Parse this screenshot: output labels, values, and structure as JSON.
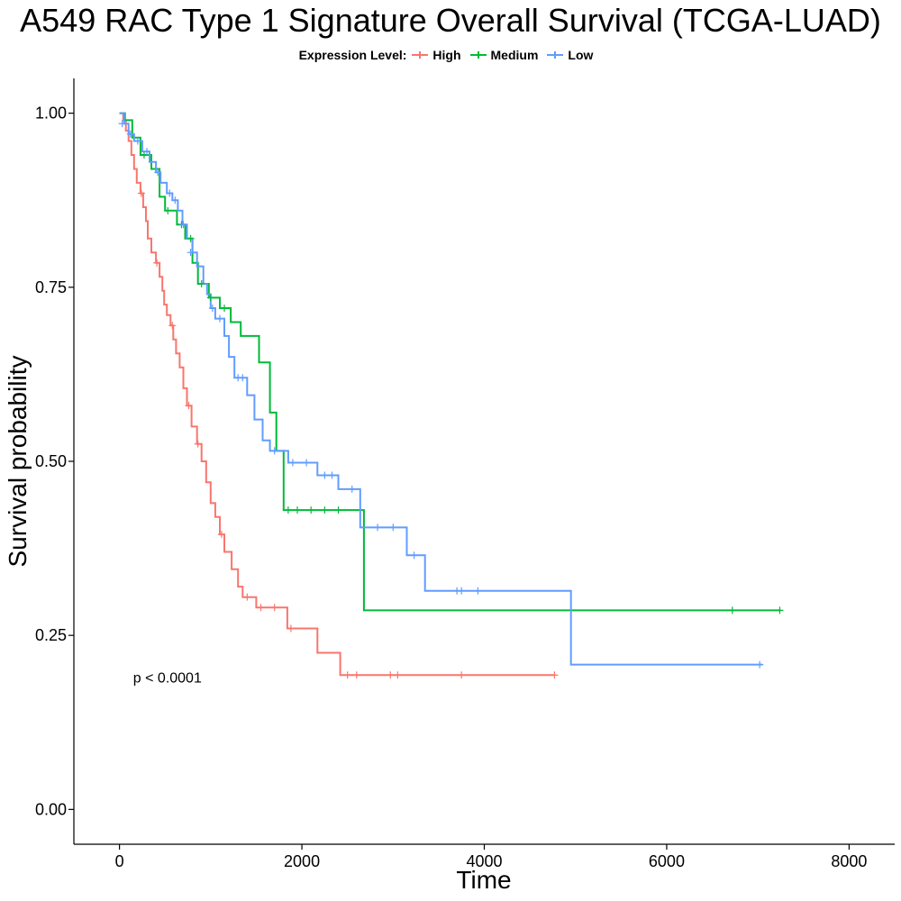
{
  "chart_data": {
    "type": "line",
    "title": "A549 RAC Type 1 Signature Overall Survival (TCGA-LUAD)",
    "xlabel": "Time",
    "ylabel": "Survival probability",
    "xlim": [
      -500,
      8500
    ],
    "ylim": [
      -0.05,
      1.05
    ],
    "x_ticks": [
      0,
      2000,
      4000,
      6000,
      8000
    ],
    "x_tick_labels": [
      "0",
      "2000",
      "4000",
      "6000",
      "8000"
    ],
    "y_ticks": [
      0,
      0.25,
      0.5,
      0.75,
      1.0
    ],
    "y_tick_labels": [
      "0.00",
      "0.25",
      "0.50",
      "0.75",
      "1.00"
    ],
    "grid": false,
    "legend": {
      "position": "top",
      "title": "Expression Level:",
      "entries": [
        "High",
        "Medium",
        "Low"
      ]
    },
    "annotation": {
      "text": "p < 0.0001",
      "x": 150,
      "y": 0.19
    },
    "series": [
      {
        "name": "High",
        "color": "#F8766D",
        "steps": [
          [
            0,
            1.0
          ],
          [
            40,
            0.99
          ],
          [
            70,
            0.975
          ],
          [
            100,
            0.96
          ],
          [
            130,
            0.94
          ],
          [
            160,
            0.92
          ],
          [
            190,
            0.9
          ],
          [
            230,
            0.885
          ],
          [
            260,
            0.865
          ],
          [
            290,
            0.845
          ],
          [
            310,
            0.82
          ],
          [
            350,
            0.8
          ],
          [
            400,
            0.785
          ],
          [
            440,
            0.765
          ],
          [
            470,
            0.745
          ],
          [
            490,
            0.725
          ],
          [
            520,
            0.71
          ],
          [
            560,
            0.695
          ],
          [
            590,
            0.675
          ],
          [
            620,
            0.655
          ],
          [
            660,
            0.635
          ],
          [
            700,
            0.605
          ],
          [
            740,
            0.58
          ],
          [
            790,
            0.55
          ],
          [
            850,
            0.525
          ],
          [
            900,
            0.5
          ],
          [
            950,
            0.47
          ],
          [
            1000,
            0.44
          ],
          [
            1050,
            0.42
          ],
          [
            1100,
            0.395
          ],
          [
            1150,
            0.37
          ],
          [
            1230,
            0.345
          ],
          [
            1300,
            0.32
          ],
          [
            1350,
            0.305
          ],
          [
            1500,
            0.29
          ],
          [
            1840,
            0.26
          ],
          [
            2170,
            0.225
          ],
          [
            2420,
            0.193
          ],
          [
            4770,
            0.193
          ]
        ],
        "censored": [
          [
            240,
            0.885
          ],
          [
            410,
            0.785
          ],
          [
            580,
            0.695
          ],
          [
            760,
            0.58
          ],
          [
            860,
            0.525
          ],
          [
            1120,
            0.395
          ],
          [
            1400,
            0.305
          ],
          [
            1550,
            0.29
          ],
          [
            1700,
            0.29
          ],
          [
            1880,
            0.26
          ],
          [
            2500,
            0.193
          ],
          [
            2600,
            0.193
          ],
          [
            2970,
            0.193
          ],
          [
            3050,
            0.193
          ],
          [
            3750,
            0.193
          ],
          [
            4770,
            0.193
          ]
        ]
      },
      {
        "name": "Medium",
        "color": "#00BA38",
        "steps": [
          [
            0,
            1.0
          ],
          [
            60,
            0.99
          ],
          [
            140,
            0.965
          ],
          [
            230,
            0.94
          ],
          [
            350,
            0.92
          ],
          [
            440,
            0.88
          ],
          [
            500,
            0.86
          ],
          [
            630,
            0.84
          ],
          [
            720,
            0.82
          ],
          [
            800,
            0.785
          ],
          [
            860,
            0.755
          ],
          [
            980,
            0.735
          ],
          [
            1100,
            0.72
          ],
          [
            1220,
            0.7
          ],
          [
            1330,
            0.68
          ],
          [
            1530,
            0.642
          ],
          [
            1650,
            0.57
          ],
          [
            1720,
            0.515
          ],
          [
            1800,
            0.43
          ],
          [
            2680,
            0.286
          ],
          [
            7250,
            0.286
          ]
        ],
        "censored": [
          [
            270,
            0.94
          ],
          [
            530,
            0.86
          ],
          [
            680,
            0.84
          ],
          [
            780,
            0.82
          ],
          [
            900,
            0.755
          ],
          [
            1000,
            0.735
          ],
          [
            1150,
            0.72
          ],
          [
            1850,
            0.43
          ],
          [
            1950,
            0.43
          ],
          [
            2100,
            0.43
          ],
          [
            2250,
            0.43
          ],
          [
            2400,
            0.43
          ],
          [
            6720,
            0.286
          ],
          [
            7240,
            0.286
          ]
        ]
      },
      {
        "name": "Low",
        "color": "#619CFF",
        "steps": [
          [
            0,
            1.0
          ],
          [
            50,
            0.985
          ],
          [
            100,
            0.97
          ],
          [
            160,
            0.96
          ],
          [
            250,
            0.945
          ],
          [
            330,
            0.93
          ],
          [
            400,
            0.915
          ],
          [
            450,
            0.9
          ],
          [
            520,
            0.885
          ],
          [
            580,
            0.875
          ],
          [
            640,
            0.86
          ],
          [
            690,
            0.84
          ],
          [
            740,
            0.82
          ],
          [
            800,
            0.8
          ],
          [
            850,
            0.78
          ],
          [
            920,
            0.755
          ],
          [
            960,
            0.74
          ],
          [
            1000,
            0.72
          ],
          [
            1050,
            0.705
          ],
          [
            1150,
            0.68
          ],
          [
            1200,
            0.65
          ],
          [
            1260,
            0.62
          ],
          [
            1400,
            0.595
          ],
          [
            1480,
            0.56
          ],
          [
            1570,
            0.53
          ],
          [
            1650,
            0.515
          ],
          [
            1850,
            0.498
          ],
          [
            2170,
            0.48
          ],
          [
            2400,
            0.46
          ],
          [
            2640,
            0.405
          ],
          [
            3150,
            0.365
          ],
          [
            3350,
            0.314
          ],
          [
            4950,
            0.208
          ],
          [
            7050,
            0.208
          ]
        ],
        "censored": [
          [
            30,
            0.985
          ],
          [
            120,
            0.97
          ],
          [
            200,
            0.96
          ],
          [
            300,
            0.945
          ],
          [
            420,
            0.915
          ],
          [
            550,
            0.885
          ],
          [
            610,
            0.875
          ],
          [
            700,
            0.84
          ],
          [
            780,
            0.8
          ],
          [
            1020,
            0.72
          ],
          [
            1100,
            0.705
          ],
          [
            1300,
            0.62
          ],
          [
            1350,
            0.62
          ],
          [
            1700,
            0.515
          ],
          [
            1900,
            0.498
          ],
          [
            2050,
            0.498
          ],
          [
            2250,
            0.48
          ],
          [
            2330,
            0.48
          ],
          [
            2550,
            0.46
          ],
          [
            2830,
            0.405
          ],
          [
            3000,
            0.405
          ],
          [
            3230,
            0.365
          ],
          [
            3700,
            0.314
          ],
          [
            3750,
            0.314
          ],
          [
            3930,
            0.314
          ],
          [
            7020,
            0.208
          ]
        ]
      }
    ]
  }
}
